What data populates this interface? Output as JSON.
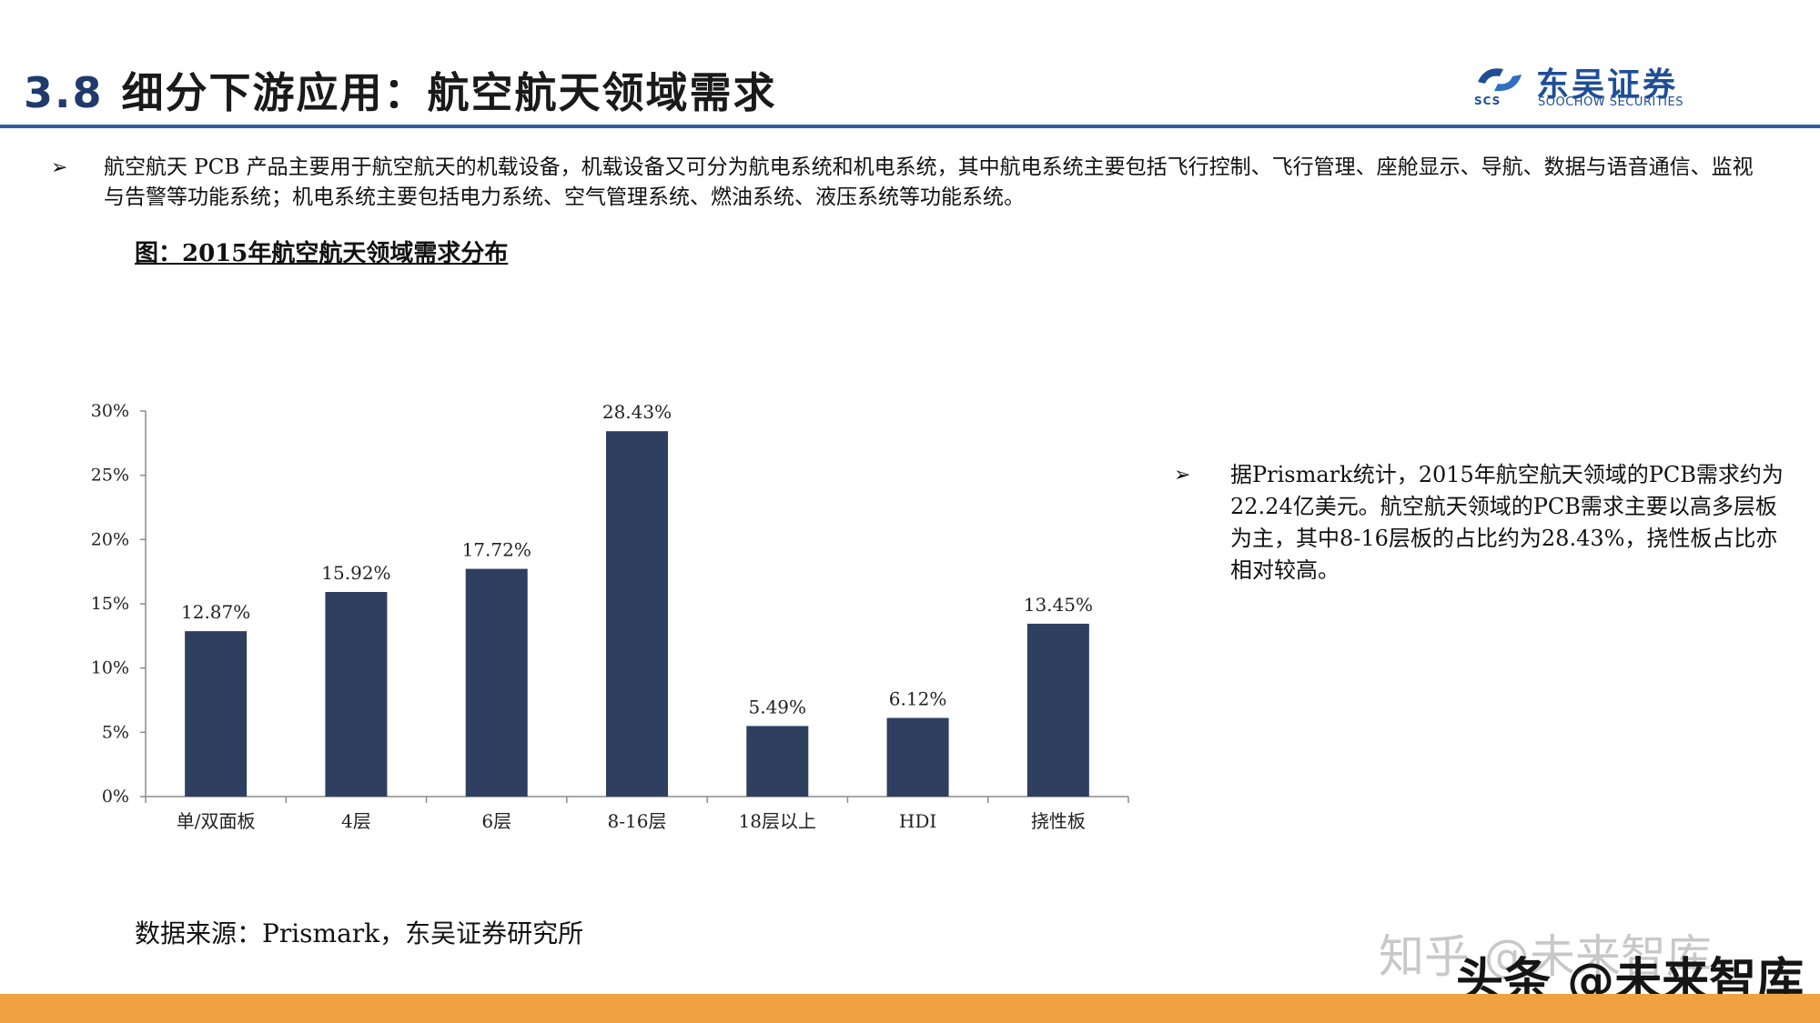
{
  "header": {
    "section_number": "3.8",
    "title": "细分下游应用：航空航天领域需求"
  },
  "logo": {
    "cn": "东吴证券",
    "en": "SOOCHOW SECURITIES",
    "abbr": "SCS",
    "brand_color": "#1f4e96"
  },
  "intro": {
    "bullet": "➢",
    "text": "航空航天 PCB 产品主要用于航空航天的机载设备，机载设备又可分为航电系统和机电系统，其中航电系统主要包括飞行控制、飞行管理、座舱显示、导航、数据与语音通信、监视与告警等功能系统；机电系统主要包括电力系统、空气管理系统、燃油系统、液压系统等功能系统。"
  },
  "figure": {
    "title": "图：2015年航空航天领域需求分布"
  },
  "chart_data": {
    "type": "bar",
    "categories": [
      "单/双面板",
      "4层",
      "6层",
      "8-16层",
      "18层以上",
      "HDI",
      "挠性板"
    ],
    "values": [
      12.87,
      15.92,
      17.72,
      28.43,
      5.49,
      6.12,
      13.45
    ],
    "data_labels": [
      "12.87%",
      "15.92%",
      "17.72%",
      "28.43%",
      "5.49%",
      "6.12%",
      "13.45%"
    ],
    "yticks": [
      "0%",
      "5%",
      "10%",
      "15%",
      "20%",
      "25%",
      "30%"
    ],
    "ylim": [
      0,
      30
    ],
    "grid": false,
    "bar_color": "#2e3f5f"
  },
  "side_note": {
    "bullet": "➢",
    "text": "据Prismark统计，2015年航空航天领域的PCB需求约为22.24亿美元。航空航天领域的PCB需求主要以高多层板为主，其中8-16层板的占比约为28.43%，挠性板占比亦相对较高。"
  },
  "source": {
    "text": "数据来源：Prismark，东吴证券研究所"
  },
  "watermarks": {
    "zhihu": "知乎 @未来智库",
    "toutiao": "头条 @未来智库"
  },
  "colors": {
    "rule": "#2e5ba8",
    "footer": "#f0a140"
  }
}
